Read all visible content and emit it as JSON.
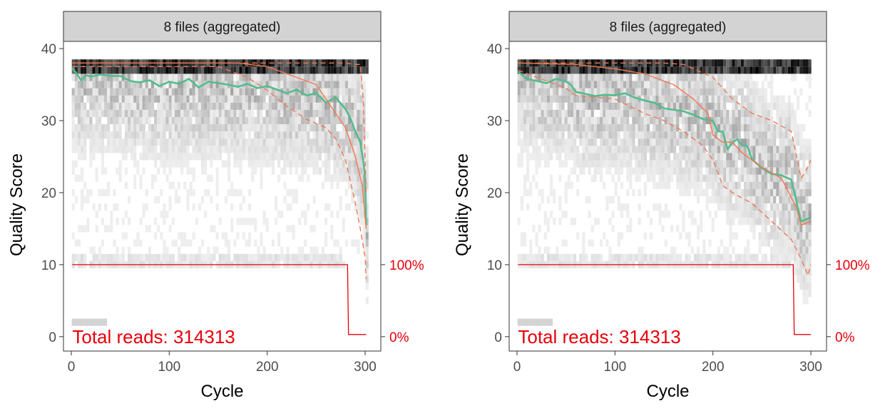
{
  "colors": {
    "mean": "#52bc90",
    "quartile": "#f4774f",
    "cumulative": "#e8000b",
    "strip_fill": "#d3d3d3",
    "strip_border": "#333333",
    "heat_min": "#f2f2f2",
    "heat_max": "#000000"
  },
  "chart_data": [
    {
      "type": "heatmap",
      "facet_label": "8 files (aggregated)",
      "xlabel": "Cycle",
      "ylabel": "Quality Score",
      "xlim": [
        -8,
        316
      ],
      "ylim": [
        -2,
        41
      ],
      "x_ticks": [
        0,
        100,
        200,
        300
      ],
      "y_ticks": [
        0,
        10,
        20,
        30,
        40
      ],
      "secondary_axis_labels": [
        {
          "value": 10,
          "label": "100%"
        },
        {
          "value": 0,
          "label": "0%"
        }
      ],
      "annotation": "Total reads: 314313",
      "grid": false,
      "series": [
        {
          "kind": "mean",
          "line": "solid",
          "points": [
            [
              1,
              37.3
            ],
            [
              5,
              36.6
            ],
            [
              10,
              35.6
            ],
            [
              15,
              36.3
            ],
            [
              20,
              36.1
            ],
            [
              30,
              36.4
            ],
            [
              40,
              36.2
            ],
            [
              50,
              36.2
            ],
            [
              60,
              35.5
            ],
            [
              70,
              35.3
            ],
            [
              80,
              35.6
            ],
            [
              90,
              34.8
            ],
            [
              100,
              35.4
            ],
            [
              110,
              35.1
            ],
            [
              120,
              35.8
            ],
            [
              130,
              34.6
            ],
            [
              140,
              35.4
            ],
            [
              150,
              35.2
            ],
            [
              160,
              35.0
            ],
            [
              170,
              34.7
            ],
            [
              180,
              35.1
            ],
            [
              190,
              34.5
            ],
            [
              200,
              34.8
            ],
            [
              210,
              34.3
            ],
            [
              220,
              33.8
            ],
            [
              230,
              34.3
            ],
            [
              240,
              33.5
            ],
            [
              250,
              33.8
            ],
            [
              260,
              32.5
            ],
            [
              270,
              33.2
            ],
            [
              280,
              31.6
            ],
            [
              285,
              30.3
            ],
            [
              290,
              28.5
            ],
            [
              295,
              27.0
            ],
            [
              298,
              24.5
            ],
            [
              300,
              22.0
            ],
            [
              301,
              15.5
            ]
          ]
        },
        {
          "kind": "median",
          "line": "solid",
          "points": [
            [
              1,
              38
            ],
            [
              170,
              38
            ],
            [
              200,
              37.5
            ],
            [
              230,
              36
            ],
            [
              250,
              35
            ],
            [
              265,
              32
            ],
            [
              280,
              29
            ],
            [
              290,
              25
            ],
            [
              297,
              21
            ],
            [
              301,
              15
            ]
          ]
        },
        {
          "kind": "q25",
          "line": "dashed",
          "points": [
            [
              1,
              37.5
            ],
            [
              150,
              37.5
            ],
            [
              180,
              36
            ],
            [
              200,
              34.2
            ],
            [
              220,
              32
            ],
            [
              240,
              30.2
            ],
            [
              260,
              29
            ],
            [
              270,
              27.5
            ],
            [
              280,
              24.5
            ],
            [
              290,
              18.5
            ],
            [
              295,
              15
            ],
            [
              300,
              11
            ],
            [
              301,
              8
            ]
          ]
        },
        {
          "kind": "q75",
          "line": "dashed",
          "points": [
            [
              1,
              38
            ],
            [
              280,
              38
            ],
            [
              290,
              37.8
            ],
            [
              295,
              37.8
            ],
            [
              298,
              33
            ],
            [
              301,
              20
            ]
          ]
        },
        {
          "kind": "cumulative",
          "line": "solid",
          "points": [
            [
              1,
              10
            ],
            [
              282,
              10
            ],
            [
              283,
              0.3
            ],
            [
              301,
              0.3
            ]
          ]
        }
      ]
    },
    {
      "type": "heatmap",
      "facet_label": "8 files (aggregated)",
      "xlabel": "Cycle",
      "ylabel": "Quality Score",
      "xlim": [
        -8,
        316
      ],
      "ylim": [
        -2,
        41
      ],
      "x_ticks": [
        0,
        100,
        200,
        300
      ],
      "y_ticks": [
        0,
        10,
        20,
        30,
        40
      ],
      "secondary_axis_labels": [
        {
          "value": 10,
          "label": "100%"
        },
        {
          "value": 0,
          "label": "0%"
        }
      ],
      "annotation": "Total reads: 314313",
      "grid": false,
      "series": [
        {
          "kind": "mean",
          "line": "solid",
          "points": [
            [
              1,
              36.8
            ],
            [
              10,
              35.8
            ],
            [
              20,
              35.5
            ],
            [
              30,
              35.2
            ],
            [
              40,
              35.8
            ],
            [
              50,
              35.4
            ],
            [
              55,
              35.0
            ],
            [
              60,
              34.0
            ],
            [
              70,
              33.7
            ],
            [
              80,
              33.4
            ],
            [
              90,
              33.6
            ],
            [
              100,
              33.5
            ],
            [
              110,
              33.8
            ],
            [
              120,
              33.2
            ],
            [
              130,
              32.8
            ],
            [
              140,
              32.5
            ],
            [
              150,
              31.7
            ],
            [
              160,
              31.5
            ],
            [
              170,
              31.3
            ],
            [
              180,
              30.8
            ],
            [
              190,
              30.2
            ],
            [
              200,
              30.0
            ],
            [
              205,
              28.5
            ],
            [
              210,
              28.5
            ],
            [
              215,
              26.0
            ],
            [
              220,
              27.0
            ],
            [
              225,
              27.4
            ],
            [
              230,
              26.5
            ],
            [
              235,
              26.5
            ],
            [
              240,
              24.6
            ],
            [
              250,
              23.4
            ],
            [
              260,
              22.6
            ],
            [
              270,
              22.4
            ],
            [
              280,
              21.8
            ],
            [
              285,
              19.0
            ],
            [
              290,
              16.0
            ],
            [
              295,
              16.3
            ],
            [
              300,
              16.5
            ]
          ]
        },
        {
          "kind": "median",
          "line": "solid",
          "points": [
            [
              1,
              38
            ],
            [
              60,
              37.8
            ],
            [
              100,
              37.2
            ],
            [
              130,
              36.5
            ],
            [
              160,
              35
            ],
            [
              180,
              33
            ],
            [
              195,
              31
            ],
            [
              200,
              28
            ],
            [
              210,
              27
            ],
            [
              220,
              27
            ],
            [
              230,
              25.5
            ],
            [
              240,
              24.5
            ],
            [
              250,
              23.5
            ],
            [
              270,
              22
            ],
            [
              285,
              18
            ],
            [
              290,
              15.5
            ],
            [
              300,
              16
            ]
          ]
        },
        {
          "kind": "q25",
          "line": "dashed",
          "points": [
            [
              1,
              37
            ],
            [
              50,
              34.5
            ],
            [
              60,
              33.5
            ],
            [
              100,
              33
            ],
            [
              130,
              31
            ],
            [
              150,
              30
            ],
            [
              170,
              28.5
            ],
            [
              190,
              26.5
            ],
            [
              200,
              24.5
            ],
            [
              210,
              21
            ],
            [
              220,
              20
            ],
            [
              240,
              18.5
            ],
            [
              260,
              16
            ],
            [
              280,
              13.5
            ],
            [
              290,
              10.8
            ],
            [
              297,
              8.5
            ],
            [
              300,
              10
            ]
          ]
        },
        {
          "kind": "q75",
          "line": "dashed",
          "points": [
            [
              1,
              38
            ],
            [
              150,
              38
            ],
            [
              170,
              37.8
            ],
            [
              200,
              36
            ],
            [
              220,
              33
            ],
            [
              240,
              31
            ],
            [
              260,
              30
            ],
            [
              280,
              28.5
            ],
            [
              290,
              22
            ],
            [
              295,
              23
            ],
            [
              300,
              24.5
            ]
          ]
        },
        {
          "kind": "cumulative",
          "line": "solid",
          "points": [
            [
              1,
              10
            ],
            [
              282,
              10
            ],
            [
              283,
              0.3
            ],
            [
              300,
              0.3
            ]
          ]
        }
      ]
    }
  ]
}
